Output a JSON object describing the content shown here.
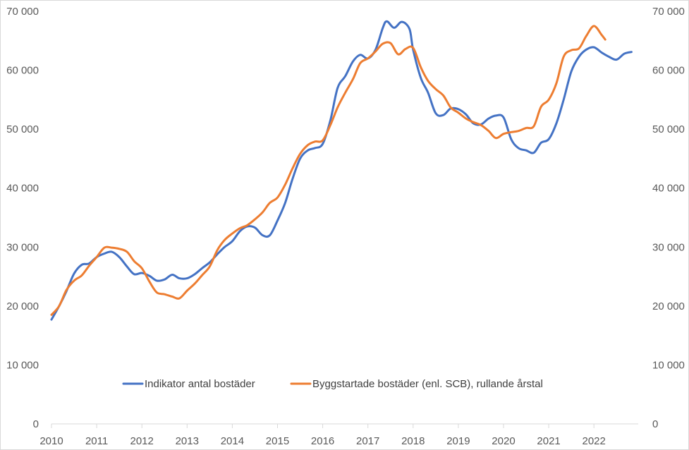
{
  "chart_data": {
    "type": "line",
    "title": "",
    "xlabel": "",
    "ylabel": "",
    "ylim": [
      0,
      70000
    ],
    "y_ticks": [
      0,
      10000,
      20000,
      30000,
      40000,
      50000,
      60000,
      70000
    ],
    "y_tick_labels": [
      "0",
      "10 000",
      "20 000",
      "30 000",
      "40 000",
      "50 000",
      "60 000",
      "70 000"
    ],
    "y2_tick_labels": [
      "0",
      "10 000",
      "20 000",
      "30 000",
      "40 000",
      "50 000",
      "60 000",
      "70 000"
    ],
    "x_range": [
      2010,
      2022.98
    ],
    "x_ticks": [
      2010,
      2011,
      2012,
      2013,
      2014,
      2015,
      2016,
      2017,
      2018,
      2019,
      2020,
      2021,
      2022
    ],
    "x_tick_labels": [
      "2010",
      "2011",
      "2012",
      "2013",
      "2014",
      "2015",
      "2016",
      "2017",
      "2018",
      "2019",
      "2020",
      "2021",
      "2022"
    ],
    "grid": false,
    "legend_position": "bottom",
    "series": [
      {
        "name": "Indikator antal bostäder",
        "color": "#4472c4",
        "points": [
          [
            2010.0,
            17700
          ],
          [
            2010.17,
            20000
          ],
          [
            2010.33,
            22500
          ],
          [
            2010.5,
            25500
          ],
          [
            2010.67,
            27000
          ],
          [
            2010.83,
            27200
          ],
          [
            2011.0,
            28300
          ],
          [
            2011.17,
            28900
          ],
          [
            2011.33,
            29200
          ],
          [
            2011.5,
            28300
          ],
          [
            2011.67,
            26700
          ],
          [
            2011.83,
            25400
          ],
          [
            2012.0,
            25600
          ],
          [
            2012.17,
            25100
          ],
          [
            2012.33,
            24300
          ],
          [
            2012.5,
            24500
          ],
          [
            2012.67,
            25300
          ],
          [
            2012.83,
            24700
          ],
          [
            2013.0,
            24700
          ],
          [
            2013.17,
            25400
          ],
          [
            2013.33,
            26400
          ],
          [
            2013.5,
            27400
          ],
          [
            2013.67,
            28800
          ],
          [
            2013.83,
            30000
          ],
          [
            2014.0,
            31000
          ],
          [
            2014.17,
            32700
          ],
          [
            2014.33,
            33500
          ],
          [
            2014.5,
            33300
          ],
          [
            2014.67,
            32000
          ],
          [
            2014.83,
            32000
          ],
          [
            2015.0,
            34500
          ],
          [
            2015.17,
            37500
          ],
          [
            2015.33,
            41500
          ],
          [
            2015.5,
            45000
          ],
          [
            2015.67,
            46400
          ],
          [
            2015.83,
            46800
          ],
          [
            2016.0,
            47500
          ],
          [
            2016.17,
            51500
          ],
          [
            2016.33,
            57000
          ],
          [
            2016.5,
            59000
          ],
          [
            2016.67,
            61500
          ],
          [
            2016.83,
            62600
          ],
          [
            2017.0,
            62000
          ],
          [
            2017.17,
            63500
          ],
          [
            2017.33,
            67200
          ],
          [
            2017.42,
            68300
          ],
          [
            2017.58,
            67200
          ],
          [
            2017.75,
            68200
          ],
          [
            2017.92,
            67000
          ],
          [
            2018.0,
            63500
          ],
          [
            2018.17,
            58700
          ],
          [
            2018.33,
            56200
          ],
          [
            2018.5,
            52700
          ],
          [
            2018.67,
            52400
          ],
          [
            2018.83,
            53500
          ],
          [
            2019.0,
            53400
          ],
          [
            2019.17,
            52500
          ],
          [
            2019.33,
            51000
          ],
          [
            2019.5,
            50800
          ],
          [
            2019.67,
            51800
          ],
          [
            2019.83,
            52300
          ],
          [
            2020.0,
            52000
          ],
          [
            2020.17,
            48300
          ],
          [
            2020.33,
            46800
          ],
          [
            2020.5,
            46400
          ],
          [
            2020.67,
            46000
          ],
          [
            2020.83,
            47700
          ],
          [
            2021.0,
            48300
          ],
          [
            2021.17,
            51000
          ],
          [
            2021.33,
            55000
          ],
          [
            2021.5,
            59800
          ],
          [
            2021.67,
            62300
          ],
          [
            2021.83,
            63500
          ],
          [
            2022.0,
            63900
          ],
          [
            2022.17,
            63000
          ],
          [
            2022.33,
            62300
          ],
          [
            2022.5,
            61800
          ],
          [
            2022.67,
            62800
          ],
          [
            2022.83,
            63100
          ]
        ]
      },
      {
        "name": "Byggstartade bostäder (enl. SCB), rullande årstal",
        "color": "#ed7d31",
        "points": [
          [
            2010.0,
            18500
          ],
          [
            2010.17,
            20000
          ],
          [
            2010.33,
            22700
          ],
          [
            2010.5,
            24300
          ],
          [
            2010.67,
            25200
          ],
          [
            2010.83,
            26800
          ],
          [
            2011.0,
            28300
          ],
          [
            2011.17,
            29900
          ],
          [
            2011.33,
            29900
          ],
          [
            2011.5,
            29700
          ],
          [
            2011.67,
            29200
          ],
          [
            2011.83,
            27600
          ],
          [
            2012.0,
            26400
          ],
          [
            2012.17,
            24100
          ],
          [
            2012.33,
            22300
          ],
          [
            2012.5,
            22000
          ],
          [
            2012.67,
            21600
          ],
          [
            2012.83,
            21300
          ],
          [
            2013.0,
            22600
          ],
          [
            2013.17,
            23800
          ],
          [
            2013.33,
            25200
          ],
          [
            2013.5,
            26700
          ],
          [
            2013.67,
            29500
          ],
          [
            2013.83,
            31200
          ],
          [
            2014.0,
            32300
          ],
          [
            2014.17,
            33200
          ],
          [
            2014.33,
            33700
          ],
          [
            2014.5,
            34700
          ],
          [
            2014.67,
            35900
          ],
          [
            2014.83,
            37500
          ],
          [
            2015.0,
            38400
          ],
          [
            2015.17,
            40600
          ],
          [
            2015.33,
            43300
          ],
          [
            2015.5,
            45800
          ],
          [
            2015.67,
            47300
          ],
          [
            2015.83,
            47900
          ],
          [
            2016.0,
            48100
          ],
          [
            2016.17,
            50700
          ],
          [
            2016.33,
            53700
          ],
          [
            2016.5,
            56200
          ],
          [
            2016.67,
            58500
          ],
          [
            2016.83,
            61200
          ],
          [
            2017.0,
            62000
          ],
          [
            2017.17,
            63200
          ],
          [
            2017.33,
            64500
          ],
          [
            2017.5,
            64600
          ],
          [
            2017.67,
            62700
          ],
          [
            2017.83,
            63600
          ],
          [
            2018.0,
            63800
          ],
          [
            2018.17,
            60500
          ],
          [
            2018.33,
            58200
          ],
          [
            2018.5,
            56800
          ],
          [
            2018.67,
            55700
          ],
          [
            2018.83,
            53700
          ],
          [
            2019.0,
            52800
          ],
          [
            2019.17,
            51800
          ],
          [
            2019.33,
            51200
          ],
          [
            2019.5,
            50700
          ],
          [
            2019.67,
            49700
          ],
          [
            2019.83,
            48500
          ],
          [
            2020.0,
            49200
          ],
          [
            2020.17,
            49500
          ],
          [
            2020.33,
            49700
          ],
          [
            2020.5,
            50200
          ],
          [
            2020.67,
            50500
          ],
          [
            2020.83,
            53800
          ],
          [
            2021.0,
            55000
          ],
          [
            2021.17,
            57800
          ],
          [
            2021.33,
            62300
          ],
          [
            2021.5,
            63400
          ],
          [
            2021.67,
            63700
          ],
          [
            2021.83,
            65800
          ],
          [
            2022.0,
            67500
          ],
          [
            2022.17,
            66000
          ],
          [
            2022.25,
            65200
          ]
        ]
      }
    ]
  }
}
